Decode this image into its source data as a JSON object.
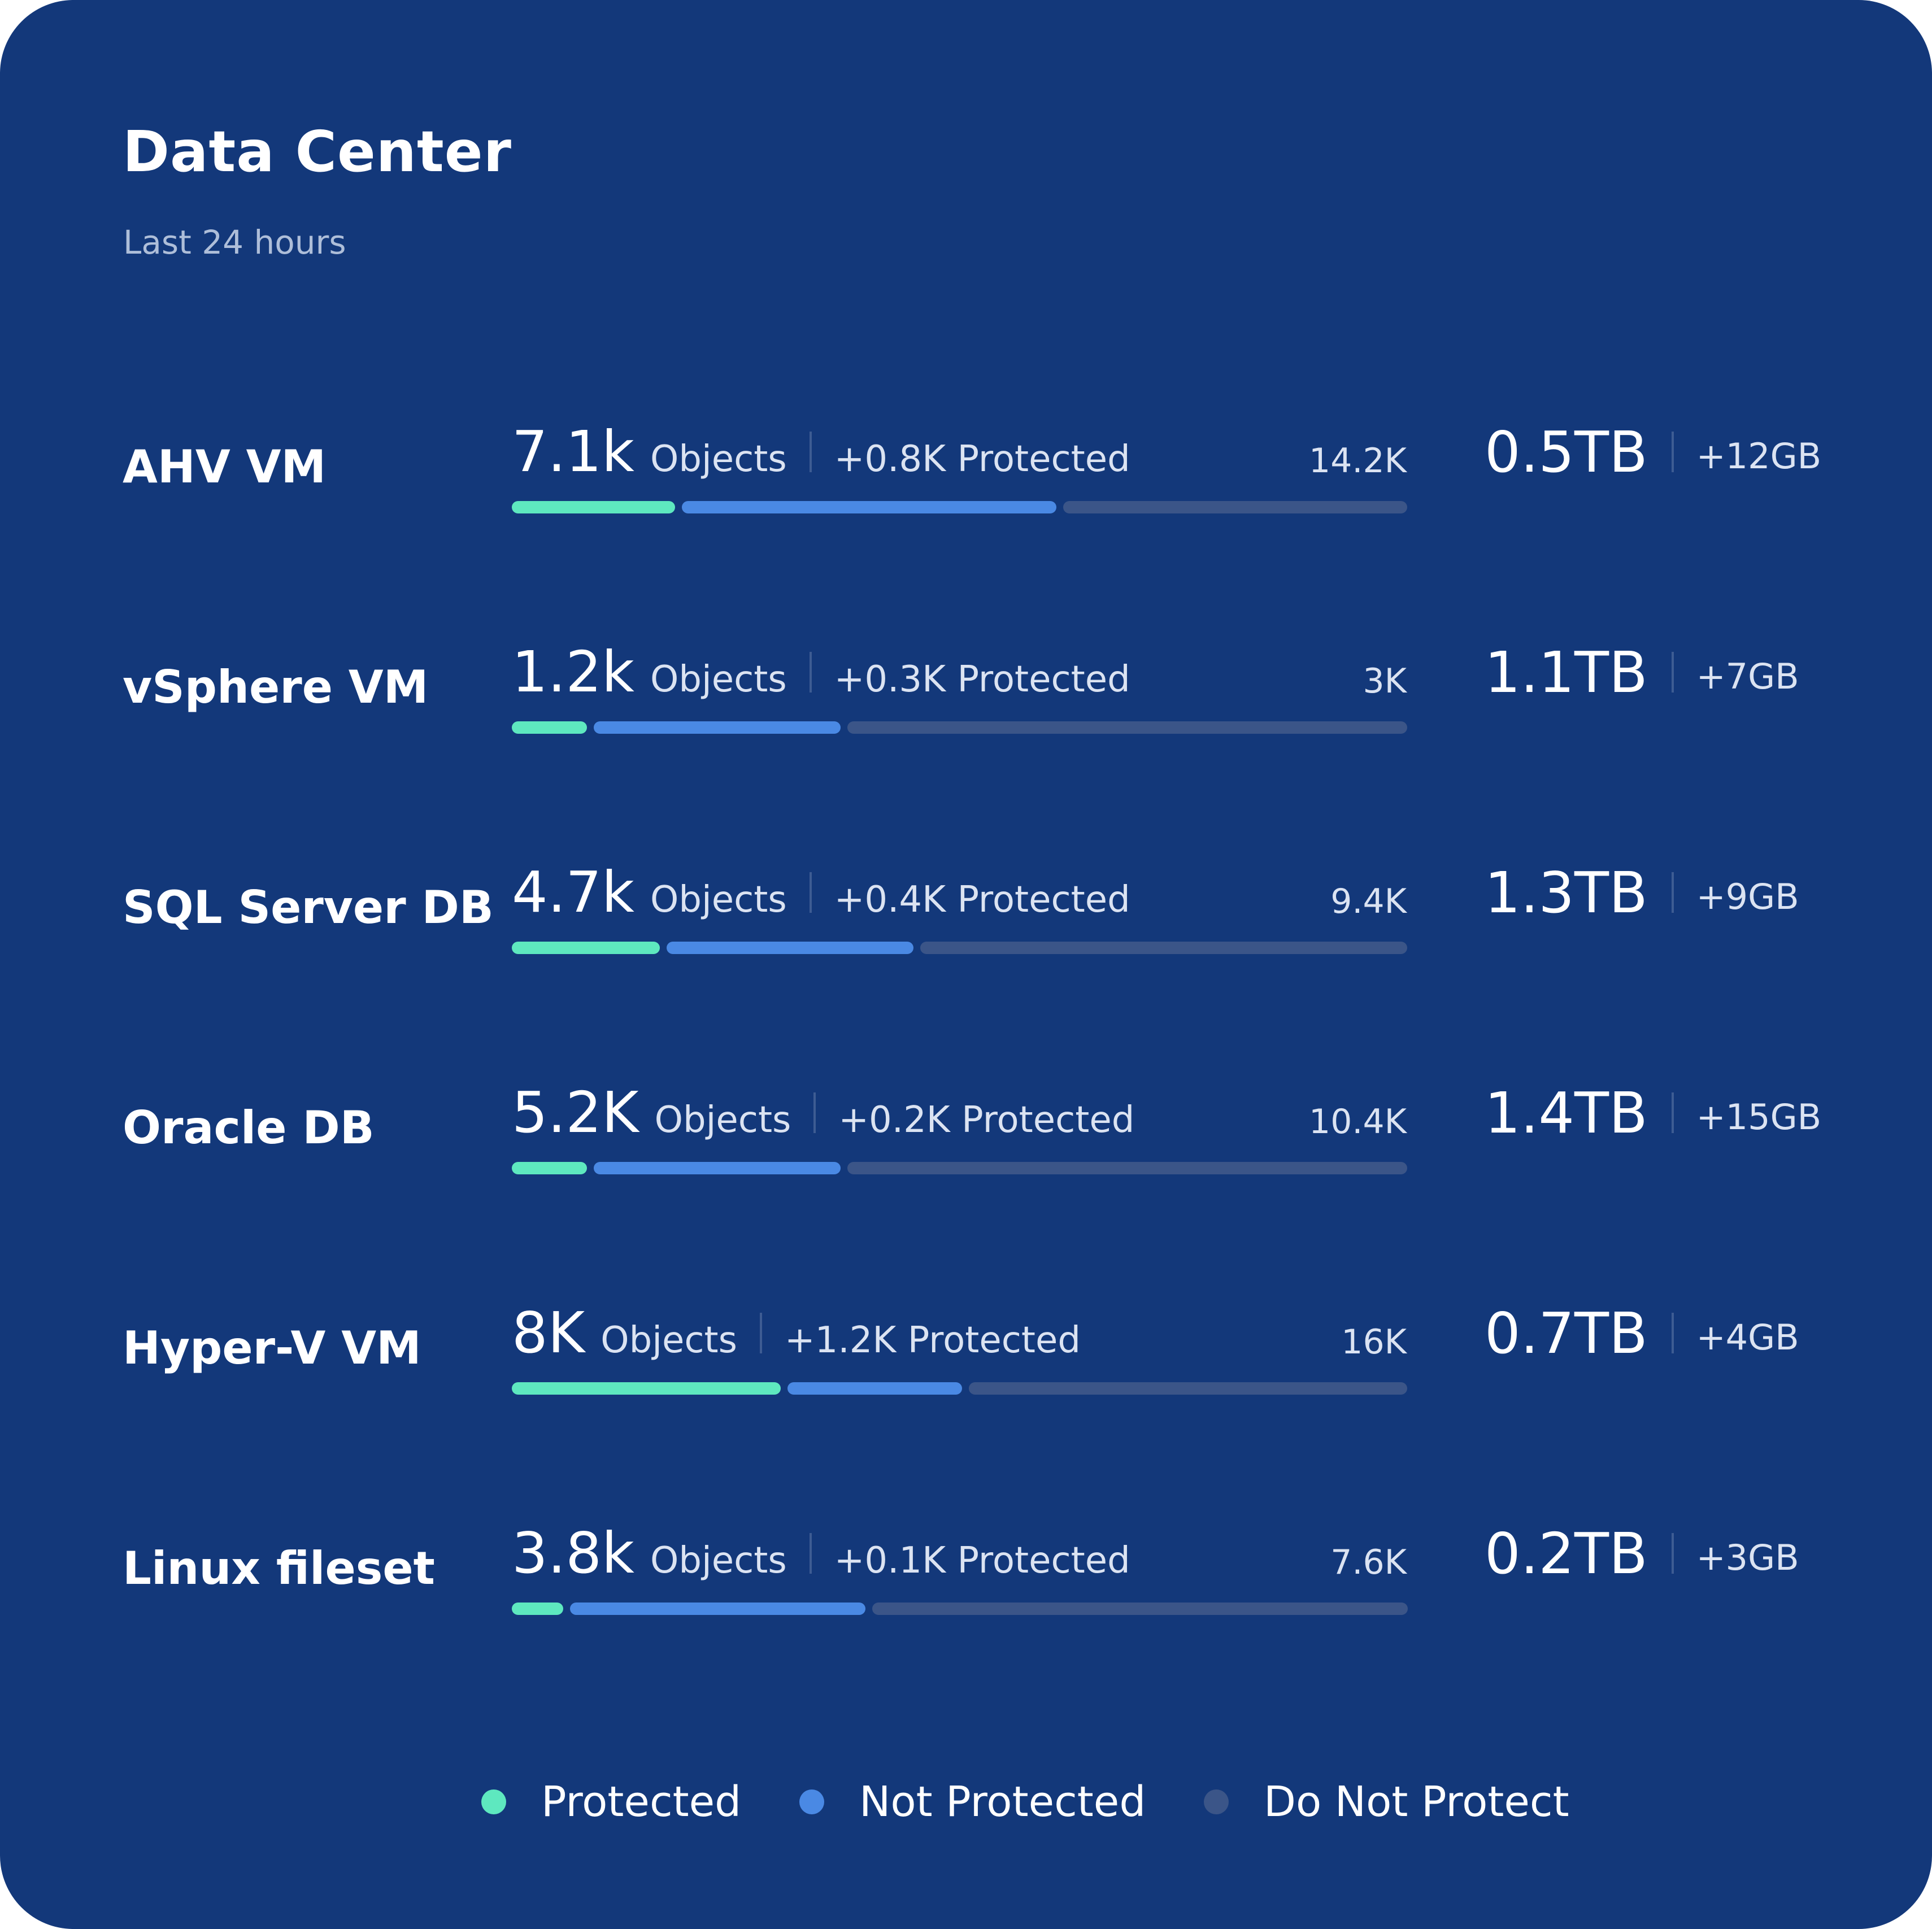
{
  "card": {
    "title": "Data Center",
    "subtitle": "Last 24 hours"
  },
  "colors": {
    "background": "#13387a",
    "protected": "#5ee8bf",
    "not_protected": "#4a89e4",
    "do_not_protect": "#3b5588"
  },
  "rows": [
    {
      "label": "AHV VM",
      "count": "7.1k",
      "unit": "Objects",
      "delta": "+0.8K Protected",
      "total": "14.2K",
      "storage": "0.5TB",
      "storage_delta": "+12GB",
      "fractions": {
        "protected": 0.185,
        "not_protected": 0.425,
        "do_not_protect": 0.39
      }
    },
    {
      "label": "vSphere VM",
      "count": "1.2k",
      "unit": "Objects",
      "delta": "+0.3K Protected",
      "total": "3K",
      "storage": "1.1TB",
      "storage_delta": "+7GB",
      "fractions": {
        "protected": 0.085,
        "not_protected": 0.28,
        "do_not_protect": 0.635
      }
    },
    {
      "label": "SQL Server DB",
      "count": "4.7k",
      "unit": "Objects",
      "delta": "+0.4K Protected",
      "total": "9.4K",
      "storage": "1.3TB",
      "storage_delta": "+9GB",
      "fractions": {
        "protected": 0.168,
        "not_protected": 0.28,
        "do_not_protect": 0.552
      }
    },
    {
      "label": "Oracle DB",
      "count": "5.2K",
      "unit": "Objects",
      "delta": "+0.2K Protected",
      "total": "10.4K",
      "storage": "1.4TB",
      "storage_delta": "+15GB",
      "fractions": {
        "protected": 0.085,
        "not_protected": 0.28,
        "do_not_protect": 0.635
      }
    },
    {
      "label": "Hyper-V VM",
      "count": "8K",
      "unit": "Objects",
      "delta": "+1.2K Protected",
      "total": "16K",
      "storage": "0.7TB",
      "storage_delta": "+4GB",
      "fractions": {
        "protected": 0.305,
        "not_protected": 0.198,
        "do_not_protect": 0.497
      }
    },
    {
      "label": "Linux fileset",
      "count": "3.8k",
      "unit": "Objects",
      "delta": "+0.1K Protected",
      "total": "7.6K",
      "storage": "0.2TB",
      "storage_delta": "+3GB",
      "fractions": {
        "protected": 0.058,
        "not_protected": 0.335,
        "do_not_protect": 0.607
      }
    }
  ],
  "legend": [
    {
      "label": "Protected",
      "color": "#5ee8bf"
    },
    {
      "label": "Not Protected",
      "color": "#4a89e4"
    },
    {
      "label": "Do Not Protect",
      "color": "#3b5588"
    }
  ]
}
